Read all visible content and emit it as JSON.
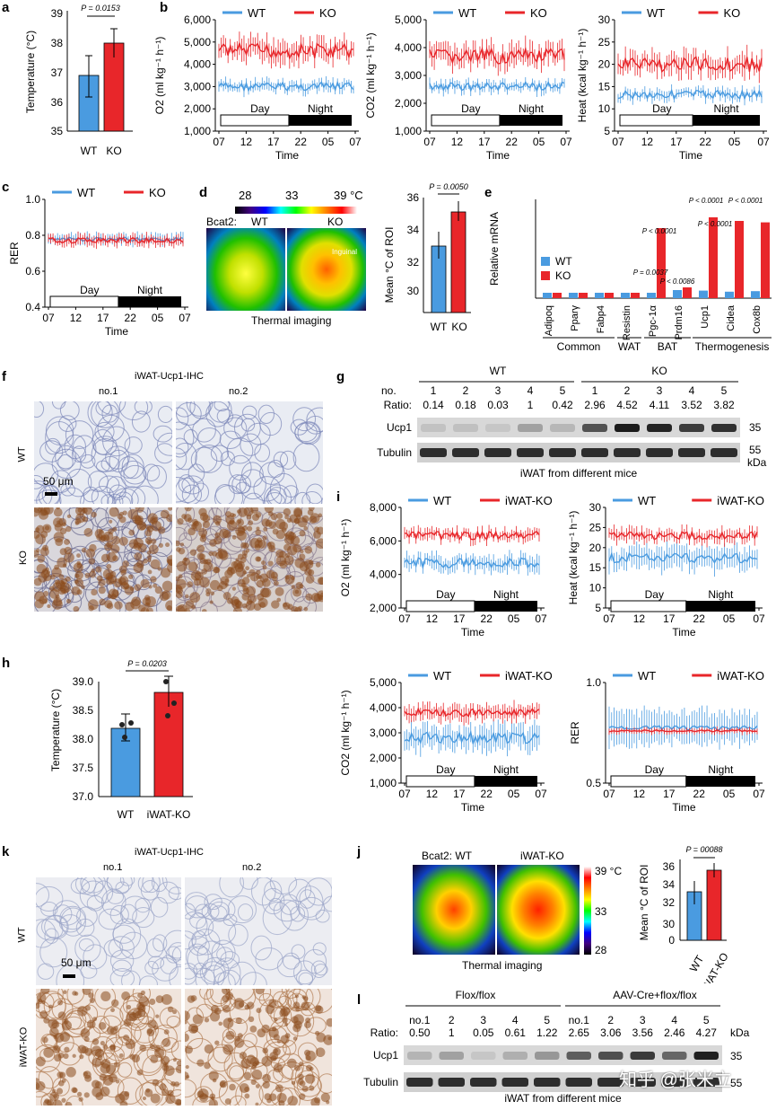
{
  "panels": {
    "a": {
      "label": "a",
      "ylabel": "Temperature (°C)",
      "p": "P = 0.0153",
      "groups": [
        "WT",
        "KO"
      ],
      "values": [
        36.9,
        38.0
      ],
      "ylim": [
        35,
        39
      ],
      "yticks": [
        "35",
        "36",
        "37",
        "38",
        "39"
      ]
    },
    "b1": {
      "label": "b",
      "ylabel": "O2 (ml kg⁻¹ h⁻¹)",
      "yticks": [
        "1,000",
        "2,000",
        "3,000",
        "4,000",
        "5,000",
        "6,000"
      ],
      "xticks": [
        "07",
        "12",
        "17",
        "22",
        "05",
        "07"
      ],
      "xlabel": "Time",
      "day": "Day",
      "night": "Night",
      "legend": [
        "WT",
        "KO"
      ]
    },
    "b2": {
      "ylabel": "CO2 (ml kg⁻¹ h⁻¹)",
      "yticks": [
        "1,000",
        "2,000",
        "3,000",
        "4,000",
        "5,000"
      ],
      "xticks": [
        "07",
        "12",
        "17",
        "22",
        "05",
        "07"
      ],
      "xlabel": "Time",
      "day": "Day",
      "night": "Night",
      "legend": [
        "WT",
        "KO"
      ]
    },
    "b3": {
      "ylabel": "Heat (kcal kg⁻¹ h⁻¹)",
      "yticks": [
        "5",
        "10",
        "15",
        "20",
        "25",
        "30"
      ],
      "xticks": [
        "07",
        "12",
        "17",
        "22",
        "05",
        "07"
      ],
      "xlabel": "Time",
      "day": "Day",
      "night": "Night",
      "legend": [
        "WT",
        "KO"
      ]
    },
    "c": {
      "label": "c",
      "ylabel": "RER",
      "yticks": [
        "0.4",
        "0.6",
        "0.8",
        "1.0"
      ],
      "xticks": [
        "07",
        "12",
        "17",
        "22",
        "05",
        "07"
      ],
      "xlabel": "Time",
      "day": "Day",
      "night": "Night",
      "legend": [
        "WT",
        "KO"
      ]
    },
    "d": {
      "label": "d",
      "scale": [
        "28",
        "33",
        "39 °C"
      ],
      "bcat": "Bcat2:",
      "wt": "WT",
      "ko": "KO",
      "caption": "Thermal imaging",
      "inguinal": "Inguinal",
      "p": "P = 0.0050",
      "ylabel": "Mean °C of ROI",
      "yticks": [
        "30",
        "32",
        "34",
        "36"
      ],
      "groups": [
        "WT",
        "KO"
      ],
      "values": [
        33.0,
        35.1
      ]
    },
    "e": {
      "label": "e",
      "ylabel": "Relative mRNA",
      "legend": [
        "WT",
        "KO"
      ],
      "genes": [
        "Adipoq",
        "Pparγ",
        "Fabp4",
        "Resistin",
        "Pgc-1α",
        "Prdm16",
        "Ucp1",
        "Cidea",
        "Cox8b"
      ],
      "groups": [
        "Common",
        "WAT",
        "BAT",
        "Thermogenesis"
      ],
      "pvals": [
        "P = 0.0037",
        "P < 0.0001",
        "P < 0.0086",
        "P < 0.0001",
        "P < 0.0001",
        "P < 0.0001"
      ]
    },
    "f": {
      "label": "f",
      "title": "iWAT-Ucp1-IHC",
      "cols": [
        "no.1",
        "no.2"
      ],
      "rows": [
        "WT",
        "KO"
      ],
      "scale": "50 μm"
    },
    "g": {
      "label": "g",
      "wt": "WT",
      "ko": "KO",
      "no": "no.",
      "ratio": "Ratio:",
      "nums": [
        "1",
        "2",
        "3",
        "4",
        "5",
        "1",
        "2",
        "3",
        "4",
        "5"
      ],
      "ratios": [
        "0.14",
        "0.18",
        "0.03",
        "1",
        "0.42",
        "2.96",
        "4.52",
        "4.11",
        "3.52",
        "3.82"
      ],
      "bands": [
        "Ucp1",
        "Tubulin"
      ],
      "mw": [
        "35",
        "55",
        "kDa"
      ],
      "caption": "iWAT from different mice"
    },
    "h": {
      "label": "h",
      "ylabel": "Temperature (°C)",
      "p": "P = 0.0203",
      "groups": [
        "WT",
        "iWAT-KO"
      ],
      "values": [
        37.82,
        38.44
      ],
      "yticks": [
        "37.0",
        "37.5",
        "38.0",
        "38.5",
        "39.0"
      ]
    },
    "i1": {
      "label": "i",
      "ylabel": "O2 (ml kg⁻¹ h⁻¹)",
      "yticks": [
        "2,000",
        "4,000",
        "6,000",
        "8,000"
      ],
      "xticks": [
        "07",
        "12",
        "17",
        "22",
        "05",
        "07"
      ],
      "xlabel": "Time",
      "day": "Day",
      "night": "Night",
      "legend": [
        "WT",
        "iWAT-KO"
      ]
    },
    "i2": {
      "ylabel": "Heat (kcal kg⁻¹ h⁻¹)",
      "yticks": [
        "5",
        "10",
        "15",
        "20",
        "25",
        "30"
      ],
      "xticks": [
        "07",
        "12",
        "17",
        "22",
        "05",
        "07"
      ],
      "xlabel": "Time",
      "day": "Day",
      "night": "Night",
      "legend": [
        "WT",
        "iWAT-KO"
      ]
    },
    "i3": {
      "ylabel": "CO2 (ml kg⁻¹ h⁻¹)",
      "yticks": [
        "1,000",
        "2,000",
        "3,000",
        "4,000",
        "5,000"
      ],
      "xticks": [
        "07",
        "12",
        "17",
        "22",
        "05",
        "07"
      ],
      "xlabel": "Time",
      "day": "Day",
      "night": "Night",
      "legend": [
        "WT",
        "iWAT-KO"
      ]
    },
    "i4": {
      "ylabel": "RER",
      "yticks": [
        "0.5",
        "1.0"
      ],
      "xticks": [
        "07",
        "12",
        "17",
        "22",
        "05",
        "07"
      ],
      "xlabel": "Time",
      "day": "Day",
      "night": "Night",
      "legend": [
        "WT",
        "iWAT-KO"
      ]
    },
    "j": {
      "label": "j",
      "bcat": "Bcat2: WT",
      "ko": "iWAT-KO",
      "scale": [
        "39 °C",
        "33",
        "28"
      ],
      "caption": "Thermal imaging",
      "p": "P = 00088",
      "ylabel": "Mean °C of ROI",
      "yticks": [
        "0",
        "30",
        "32",
        "34",
        "36"
      ],
      "groups": [
        "WT",
        "iWAT-KO"
      ],
      "values": [
        33.6,
        36.0
      ]
    },
    "k": {
      "label": "k",
      "title": "iWAT-Ucp1-IHC",
      "cols": [
        "no.1",
        "no.2"
      ],
      "rows": [
        "WT",
        "iWAT-KO"
      ],
      "scale": "50 μm"
    },
    "l": {
      "label": "l",
      "g1": "Flox/flox",
      "g2": "AAV-Cre+flox/flox",
      "nums": [
        "no.1",
        "2",
        "3",
        "4",
        "5",
        "no.1",
        "2",
        "3",
        "4",
        "5"
      ],
      "ratio": "Ratio:",
      "ratios": [
        "0.50",
        "1",
        "0.05",
        "0.61",
        "1.22",
        "2.65",
        "3.06",
        "3.56",
        "2.46",
        "4.27"
      ],
      "bands": [
        "Ucp1",
        "Tubulin"
      ],
      "mw": [
        "kDa",
        "35",
        "55"
      ],
      "caption": "iWAT from different mice"
    }
  },
  "watermark": "知乎 @张米立",
  "colors": {
    "wt": "#4a9be0",
    "ko": "#e8262a"
  }
}
